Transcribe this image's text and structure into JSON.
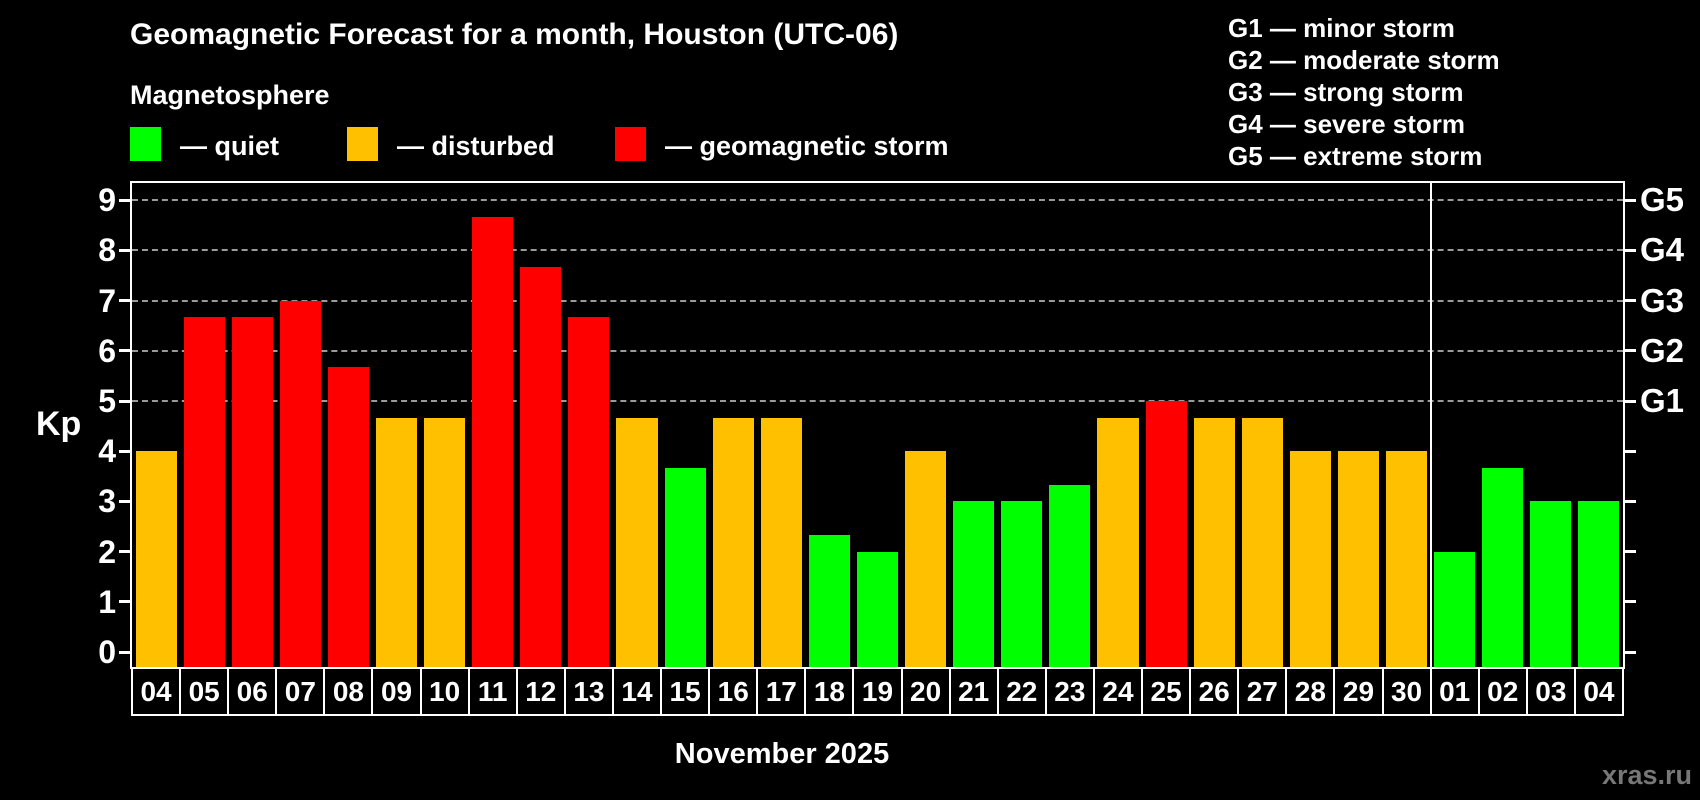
{
  "header": {
    "title": "Geomagnetic Forecast for a month, Houston (UTC-06)",
    "subtitle": "Magnetosphere"
  },
  "legend": {
    "items": [
      {
        "key": "quiet",
        "label": "— quiet",
        "color": "#00ff00"
      },
      {
        "key": "disturbed",
        "label": "— disturbed",
        "color": "#ffc000"
      },
      {
        "key": "storm",
        "label": "— geomagnetic storm",
        "color": "#ff0000"
      }
    ]
  },
  "g_scale_legend": {
    "lines": [
      "G1 — minor storm",
      "G2 — moderate storm",
      "G3 — strong storm",
      "G4 — severe storm",
      "G5 — extreme storm"
    ]
  },
  "watermark": "xras.ru",
  "chart_data": {
    "type": "bar",
    "title": "Geomagnetic Forecast for a month, Houston (UTC-06)",
    "subtitle": "Magnetosphere",
    "xlabel": "November 2025",
    "ylabel": "Kp",
    "ylim": [
      0,
      9
    ],
    "y_ticks": [
      0,
      1,
      2,
      3,
      4,
      5,
      6,
      7,
      8,
      9
    ],
    "grid": "horizontal dashed lines at Kp 5,6,7,8,9",
    "legend_position": "top-left",
    "right_axis_labels": [
      {
        "label": "G1",
        "kp": 5
      },
      {
        "label": "G2",
        "kp": 6
      },
      {
        "label": "G3",
        "kp": 7
      },
      {
        "label": "G4",
        "kp": 8
      },
      {
        "label": "G5",
        "kp": 9
      }
    ],
    "colors": {
      "quiet": "#00ff00",
      "disturbed": "#ffc000",
      "storm": "#ff0000"
    },
    "month_separator_after_index": 26,
    "categories": [
      "04",
      "05",
      "06",
      "07",
      "08",
      "09",
      "10",
      "11",
      "12",
      "13",
      "14",
      "15",
      "16",
      "17",
      "18",
      "19",
      "20",
      "21",
      "22",
      "23",
      "24",
      "25",
      "26",
      "27",
      "28",
      "29",
      "30",
      "01",
      "02",
      "03",
      "04"
    ],
    "values": [
      4,
      6.67,
      6.67,
      7,
      5.67,
      4.67,
      4.67,
      8.67,
      7.67,
      6.67,
      4.67,
      3.67,
      4.67,
      4.67,
      2.33,
      2,
      4,
      3,
      3,
      3.33,
      4.67,
      5,
      4.67,
      4.67,
      4,
      4,
      4,
      2,
      3.67,
      3,
      3
    ],
    "status": [
      "disturbed",
      "storm",
      "storm",
      "storm",
      "storm",
      "disturbed",
      "disturbed",
      "storm",
      "storm",
      "storm",
      "disturbed",
      "quiet",
      "disturbed",
      "disturbed",
      "quiet",
      "quiet",
      "disturbed",
      "quiet",
      "quiet",
      "quiet",
      "disturbed",
      "storm",
      "disturbed",
      "disturbed",
      "disturbed",
      "disturbed",
      "disturbed",
      "quiet",
      "quiet",
      "quiet",
      "quiet"
    ]
  }
}
